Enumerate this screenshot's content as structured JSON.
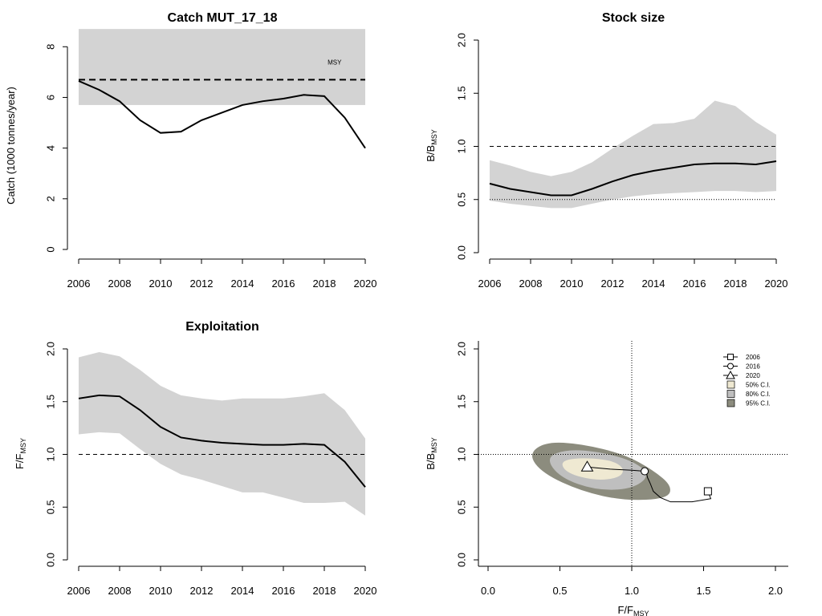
{
  "colors": {
    "ci_band": "#d3d3d3",
    "ci50": "#efe9d2",
    "ci80": "#bfbfbf",
    "ci95": "#8c8c7e",
    "line": "#000000"
  },
  "chart_data": [
    {
      "id": "catch",
      "type": "line",
      "title": "Catch MUT_17_18",
      "ylabel": "Catch (1000 tonnes/year)",
      "xlim": [
        2006,
        2020
      ],
      "ylim": [
        0,
        8.8
      ],
      "xticks": [
        2006,
        2008,
        2010,
        2012,
        2014,
        2016,
        2018,
        2020
      ],
      "yticks": [
        0,
        2,
        4,
        6,
        8
      ],
      "x": [
        2006,
        2007,
        2008,
        2009,
        2010,
        2011,
        2012,
        2013,
        2014,
        2015,
        2016,
        2017,
        2018,
        2019,
        2020
      ],
      "series": [
        {
          "values": [
            6.65,
            6.3,
            5.85,
            5.1,
            4.6,
            4.65,
            5.1,
            5.4,
            5.7,
            5.85,
            5.95,
            6.1,
            6.05,
            5.2,
            4.0
          ]
        }
      ],
      "msy_band": {
        "lower": 5.7,
        "upper": 8.7
      },
      "msy_line": 6.7,
      "msy_label": "MSY"
    },
    {
      "id": "stock",
      "type": "line",
      "title": "Stock size",
      "ylabel_main": "B/B",
      "ylabel_sub": "MSY",
      "xlim": [
        2006,
        2020
      ],
      "ylim": [
        0,
        2.05
      ],
      "xticks": [
        2006,
        2008,
        2010,
        2012,
        2014,
        2016,
        2018,
        2020
      ],
      "yticks": [
        "0.0",
        "0.5",
        "1.0",
        "1.5",
        "2.0"
      ],
      "x": [
        2006,
        2007,
        2008,
        2009,
        2010,
        2011,
        2012,
        2013,
        2014,
        2015,
        2016,
        2017,
        2018,
        2019,
        2020
      ],
      "series": [
        {
          "values": [
            0.65,
            0.6,
            0.57,
            0.54,
            0.54,
            0.6,
            0.67,
            0.73,
            0.77,
            0.8,
            0.83,
            0.84,
            0.84,
            0.83,
            0.86
          ]
        }
      ],
      "ci_upper": [
        0.87,
        0.82,
        0.76,
        0.72,
        0.76,
        0.85,
        0.98,
        1.1,
        1.21,
        1.22,
        1.26,
        1.43,
        1.38,
        1.23,
        1.11
      ],
      "ci_lower": [
        0.49,
        0.46,
        0.44,
        0.42,
        0.42,
        0.46,
        0.5,
        0.53,
        0.55,
        0.56,
        0.57,
        0.58,
        0.58,
        0.57,
        0.58
      ],
      "ref_dashed": 1.0,
      "ref_dotted": 0.5
    },
    {
      "id": "exploitation",
      "type": "line",
      "title": "Exploitation",
      "ylabel_main": "F/F",
      "ylabel_sub": "MSY",
      "xlim": [
        2006,
        2020
      ],
      "ylim": [
        0,
        2.05
      ],
      "xticks": [
        2006,
        2008,
        2010,
        2012,
        2014,
        2016,
        2018,
        2020
      ],
      "yticks": [
        "0.0",
        "0.5",
        "1.0",
        "1.5",
        "2.0"
      ],
      "x": [
        2006,
        2007,
        2008,
        2009,
        2010,
        2011,
        2012,
        2013,
        2014,
        2015,
        2016,
        2017,
        2018,
        2019,
        2020
      ],
      "series": [
        {
          "values": [
            1.53,
            1.56,
            1.55,
            1.42,
            1.26,
            1.16,
            1.13,
            1.11,
            1.1,
            1.09,
            1.09,
            1.1,
            1.09,
            0.93,
            0.69
          ]
        }
      ],
      "ci_upper": [
        1.92,
        1.97,
        1.93,
        1.8,
        1.65,
        1.56,
        1.53,
        1.51,
        1.53,
        1.53,
        1.53,
        1.55,
        1.58,
        1.42,
        1.15
      ],
      "ci_lower": [
        1.19,
        1.21,
        1.2,
        1.05,
        0.91,
        0.81,
        0.76,
        0.7,
        0.64,
        0.64,
        0.59,
        0.54,
        0.54,
        0.55,
        0.42
      ],
      "ref_dashed": 1.0
    },
    {
      "id": "kobe",
      "type": "scatter",
      "xlabel_main": "F/F",
      "xlabel_sub": "MSY",
      "ylabel_main": "B/B",
      "ylabel_sub": "MSY",
      "xlim": [
        -0.05,
        2.08
      ],
      "ylim": [
        -0.05,
        2.1
      ],
      "xticks": [
        "0.0",
        "0.5",
        "1.0",
        "1.5",
        "2.0"
      ],
      "yticks": [
        "0.0",
        "0.5",
        "1.0",
        "1.5",
        "2.0"
      ],
      "trajectory": {
        "F": [
          1.53,
          1.55,
          1.42,
          1.27,
          1.2,
          1.15,
          1.13,
          1.11,
          1.1,
          1.09,
          1.0,
          0.85,
          0.69
        ],
        "B": [
          0.65,
          0.58,
          0.55,
          0.55,
          0.59,
          0.65,
          0.72,
          0.78,
          0.84,
          0.84,
          0.85,
          0.86,
          0.88
        ]
      },
      "ci95": [
        [
          0.28,
          1.0
        ],
        [
          0.4,
          1.12
        ],
        [
          0.65,
          1.1
        ],
        [
          0.95,
          1.0
        ],
        [
          1.15,
          0.85
        ],
        [
          1.28,
          0.7
        ],
        [
          1.25,
          0.58
        ],
        [
          0.95,
          0.56
        ],
        [
          0.65,
          0.65
        ],
        [
          0.38,
          0.82
        ]
      ],
      "ci80": [
        [
          0.4,
          0.97
        ],
        [
          0.55,
          1.05
        ],
        [
          0.8,
          1.02
        ],
        [
          1.02,
          0.93
        ],
        [
          1.13,
          0.8
        ],
        [
          1.0,
          0.67
        ],
        [
          0.75,
          0.66
        ],
        [
          0.5,
          0.78
        ]
      ],
      "ci50": [
        [
          0.5,
          0.93
        ],
        [
          0.62,
          0.97
        ],
        [
          0.85,
          0.95
        ],
        [
          0.95,
          0.87
        ],
        [
          0.92,
          0.78
        ],
        [
          0.75,
          0.75
        ],
        [
          0.55,
          0.82
        ]
      ],
      "ref_F": 1.0,
      "ref_B": 1.0,
      "legend": [
        {
          "label": "2006",
          "symbol": "square"
        },
        {
          "label": "2016",
          "symbol": "circle"
        },
        {
          "label": "2020",
          "symbol": "triangle"
        },
        {
          "label": "50% C.I.",
          "symbol": "ci50"
        },
        {
          "label": "80% C.I.",
          "symbol": "ci80"
        },
        {
          "label": "95% C.I.",
          "symbol": "ci95"
        }
      ],
      "legend_position": "top-right"
    }
  ]
}
